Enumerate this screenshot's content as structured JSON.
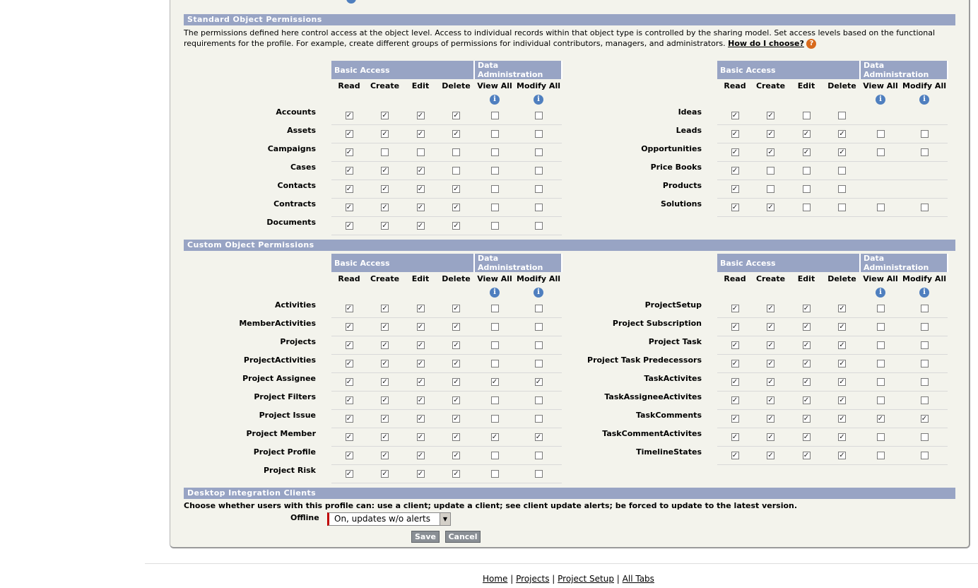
{
  "standard_section": {
    "title": "Standard Object Permissions",
    "description": "The permissions defined here control access at the object level. Access to individual records within that object type is controlled by the sharing model. Set access levels based on the functional requirements for the profile. For example, create different groups of permissions for individual contributors, managers, and administrators.",
    "help_link": "How do I choose?"
  },
  "custom_section": {
    "title": "Custom Object Permissions"
  },
  "headers": {
    "basic_access": "Basic Access",
    "data_admin": "Data Administration",
    "read": "Read",
    "create": "Create",
    "edit": "Edit",
    "delete": "Delete",
    "view_all": "View All",
    "modify_all": "Modify All"
  },
  "standard_left": [
    {
      "name": "Accounts",
      "perms": [
        true,
        true,
        true,
        true,
        false,
        false
      ]
    },
    {
      "name": "Assets",
      "perms": [
        true,
        true,
        true,
        true,
        false,
        false
      ]
    },
    {
      "name": "Campaigns",
      "perms": [
        true,
        false,
        false,
        false,
        false,
        false
      ]
    },
    {
      "name": "Cases",
      "perms": [
        true,
        true,
        true,
        false,
        false,
        false
      ]
    },
    {
      "name": "Contacts",
      "perms": [
        true,
        true,
        true,
        true,
        false,
        false
      ]
    },
    {
      "name": "Contracts",
      "perms": [
        true,
        true,
        true,
        true,
        false,
        false
      ]
    },
    {
      "name": "Documents",
      "perms": [
        true,
        true,
        true,
        true,
        false,
        false
      ]
    }
  ],
  "standard_right": [
    {
      "name": "Ideas",
      "perms": [
        true,
        true,
        false,
        false,
        null,
        null
      ]
    },
    {
      "name": "Leads",
      "perms": [
        true,
        true,
        true,
        true,
        false,
        false
      ]
    },
    {
      "name": "Opportunities",
      "perms": [
        true,
        true,
        true,
        true,
        false,
        false
      ]
    },
    {
      "name": "Price Books",
      "perms": [
        true,
        false,
        false,
        false,
        null,
        null
      ]
    },
    {
      "name": "Products",
      "perms": [
        true,
        false,
        false,
        false,
        null,
        null
      ]
    },
    {
      "name": "Solutions",
      "perms": [
        true,
        true,
        false,
        false,
        false,
        false
      ]
    }
  ],
  "custom_left": [
    {
      "name": "Activities",
      "perms": [
        true,
        true,
        true,
        true,
        false,
        false
      ]
    },
    {
      "name": "MemberActivities",
      "perms": [
        true,
        true,
        true,
        true,
        false,
        false
      ]
    },
    {
      "name": "Projects",
      "perms": [
        true,
        true,
        true,
        true,
        false,
        false
      ]
    },
    {
      "name": "ProjectActivities",
      "perms": [
        true,
        true,
        true,
        true,
        false,
        false
      ]
    },
    {
      "name": "Project Assignee",
      "perms": [
        true,
        true,
        true,
        true,
        true,
        true
      ]
    },
    {
      "name": "Project Filters",
      "perms": [
        true,
        true,
        true,
        true,
        false,
        false
      ]
    },
    {
      "name": "Project Issue",
      "perms": [
        true,
        true,
        true,
        true,
        false,
        false
      ]
    },
    {
      "name": "Project Member",
      "perms": [
        true,
        true,
        true,
        true,
        true,
        true
      ]
    },
    {
      "name": "Project Profile",
      "perms": [
        true,
        true,
        true,
        true,
        false,
        false
      ]
    },
    {
      "name": "Project Risk",
      "perms": [
        true,
        true,
        true,
        true,
        false,
        false
      ]
    }
  ],
  "custom_right": [
    {
      "name": "ProjectSetup",
      "perms": [
        true,
        true,
        true,
        true,
        false,
        false
      ]
    },
    {
      "name": "Project Subscription",
      "perms": [
        true,
        true,
        true,
        true,
        false,
        false
      ]
    },
    {
      "name": "Project Task",
      "perms": [
        true,
        true,
        true,
        true,
        false,
        false
      ]
    },
    {
      "name": "Project Task Predecessors",
      "perms": [
        true,
        true,
        true,
        true,
        false,
        false
      ]
    },
    {
      "name": "TaskActivites",
      "perms": [
        true,
        true,
        true,
        true,
        false,
        false
      ]
    },
    {
      "name": "TaskAssigneeActivites",
      "perms": [
        true,
        true,
        true,
        true,
        false,
        false
      ]
    },
    {
      "name": "TaskComments",
      "perms": [
        true,
        true,
        true,
        true,
        true,
        true
      ]
    },
    {
      "name": "TaskCommentActivites",
      "perms": [
        true,
        true,
        true,
        true,
        false,
        false
      ]
    },
    {
      "name": "TimelineStates",
      "perms": [
        true,
        true,
        true,
        true,
        false,
        false
      ]
    }
  ],
  "desktop": {
    "title": "Desktop Integration Clients",
    "description": "Choose whether users with this profile can: use a client; update a client; see client update alerts; be forced to update to the latest version.",
    "offline_label": "Offline",
    "offline_value": "On, updates w/o alerts"
  },
  "buttons": {
    "save": "Save",
    "cancel": "Cancel"
  },
  "footer": {
    "home": "Home",
    "projects": "Projects",
    "project_setup": "Project Setup",
    "all_tabs": "All Tabs",
    "sep": "|"
  }
}
